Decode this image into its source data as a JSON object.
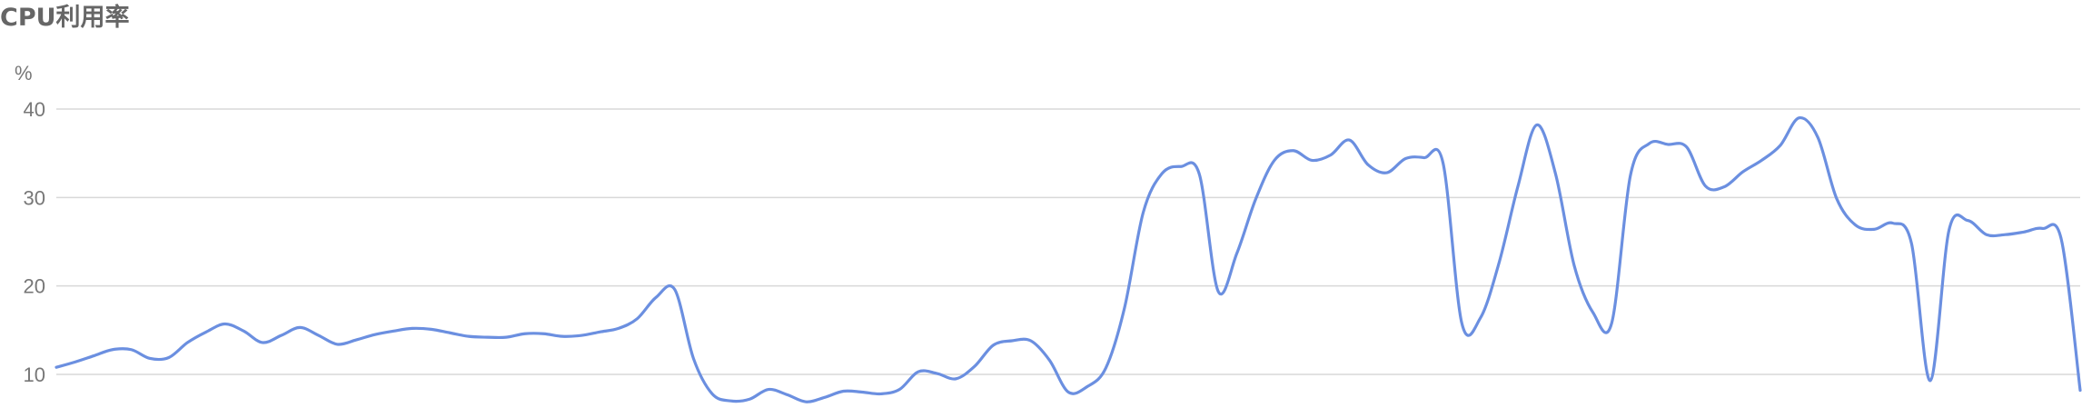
{
  "chart_data": {
    "type": "line",
    "title": "CPU利用率",
    "ylabel": "%",
    "xlabel": "",
    "ylim": [
      8.2,
      40
    ],
    "yticks": [
      10,
      20,
      30,
      40
    ],
    "grid": true,
    "series": [
      {
        "color": "#6b8fe0",
        "values": [
          10.8,
          11.4,
          12.1,
          12.8,
          12.8,
          11.8,
          11.9,
          13.6,
          14.8,
          15.7,
          14.9,
          13.6,
          14.4,
          15.3,
          14.4,
          13.4,
          13.9,
          14.5,
          14.9,
          15.2,
          15.1,
          14.7,
          14.3,
          14.2,
          14.2,
          14.6,
          14.6,
          14.3,
          14.4,
          14.8,
          15.2,
          16.3,
          18.7,
          19.6,
          11.8,
          7.8,
          7.0,
          7.2,
          8.3,
          7.7,
          6.9,
          7.4,
          8.1,
          8.0,
          7.8,
          8.3,
          10.3,
          10.1,
          9.5,
          10.9,
          13.3,
          13.8,
          13.8,
          11.6,
          8.0,
          8.6,
          10.7,
          17.5,
          28.3,
          32.7,
          33.5,
          32.6,
          19.4,
          23.7,
          29.8,
          34.2,
          35.3,
          34.2,
          34.8,
          36.5,
          33.7,
          32.8,
          34.4,
          34.5,
          33.9,
          15.8,
          16.4,
          22.7,
          31.3,
          38.2,
          32.7,
          22.3,
          17.0,
          15.8,
          32.5,
          36.1,
          36.0,
          35.7,
          31.3,
          31.2,
          32.9,
          34.2,
          35.9,
          39.0,
          36.8,
          29.9,
          26.9,
          26.4,
          27.1,
          24.8,
          9.3,
          26.3,
          27.4,
          25.8,
          25.8,
          26.1,
          26.5,
          25.2,
          8.2
        ]
      }
    ]
  }
}
